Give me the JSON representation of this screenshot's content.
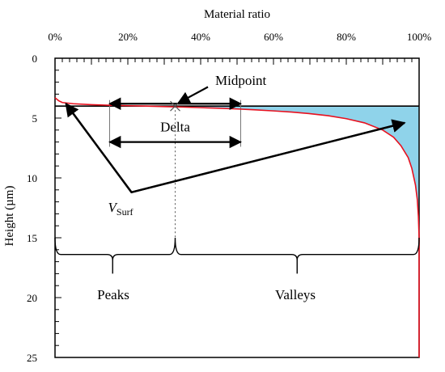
{
  "chart_data": {
    "type": "area",
    "title": "",
    "xlabel": "Material ratio",
    "ylabel": "Height (µm)",
    "xlim": [
      0,
      100
    ],
    "ylim": [
      0,
      25
    ],
    "y_inverted": true,
    "x_axis_position": "top",
    "x_ticks": [
      0,
      20,
      40,
      60,
      80,
      100
    ],
    "x_tick_labels": [
      "0%",
      "20%",
      "40%",
      "60%",
      "80%",
      "100%"
    ],
    "y_ticks": [
      0,
      5,
      10,
      15,
      20,
      25
    ],
    "y_tick_labels": [
      "0",
      "5",
      "10",
      "15",
      "20",
      "25"
    ],
    "grid": false,
    "curve": {
      "color": "#e8101e",
      "x": [
        0,
        1,
        2,
        5,
        10,
        15,
        20,
        25,
        30,
        35,
        40,
        45,
        50,
        55,
        60,
        65,
        70,
        75,
        80,
        85,
        90,
        93,
        95,
        97,
        98,
        99,
        99.5,
        99.8,
        100,
        100
      ],
      "y": [
        3.3,
        3.55,
        3.7,
        3.8,
        3.88,
        3.93,
        3.97,
        4.0,
        4.04,
        4.08,
        4.13,
        4.18,
        4.24,
        4.31,
        4.4,
        4.5,
        4.63,
        4.8,
        5.05,
        5.4,
        6.0,
        6.6,
        7.3,
        8.3,
        9.2,
        10.6,
        11.8,
        13.2,
        15.0,
        25
      ]
    },
    "vsurf_area": {
      "label": "V",
      "label_subscript": "Surf",
      "color": "#8fd3ea",
      "level": 4.0,
      "label_x": 19,
      "label_y": 12.5
    },
    "reference_line": {
      "y": 4.0,
      "x_start": 0,
      "x_end": 100
    },
    "midpoint": {
      "label": "Midpoint",
      "x": 33,
      "y": 4.0,
      "label_x": 44,
      "label_y": 1.9,
      "arrow_from_x": 42,
      "arrow_from_y": 2.4
    },
    "delta": {
      "label": "Delta",
      "x_start": 15,
      "x_end": 51,
      "y": 7.0,
      "label_x": 33,
      "label_y": 6.1
    },
    "upper_arrow": {
      "x_start": 15,
      "x_end": 51,
      "y": 3.8
    },
    "triangle": {
      "apex": [
        21,
        11.2
      ],
      "left_end": [
        3,
        3.8
      ],
      "right_end": [
        96,
        5.4
      ]
    },
    "braces": {
      "y_top": 15.0,
      "y_line": 16.4,
      "tip_y": 18.0,
      "left_x": 0,
      "split_x": 33,
      "right_x": 100
    },
    "regions": [
      {
        "label": "Peaks",
        "x": 16,
        "y": 19.8
      },
      {
        "label": "Valleys",
        "x": 66,
        "y": 19.8
      }
    ]
  }
}
